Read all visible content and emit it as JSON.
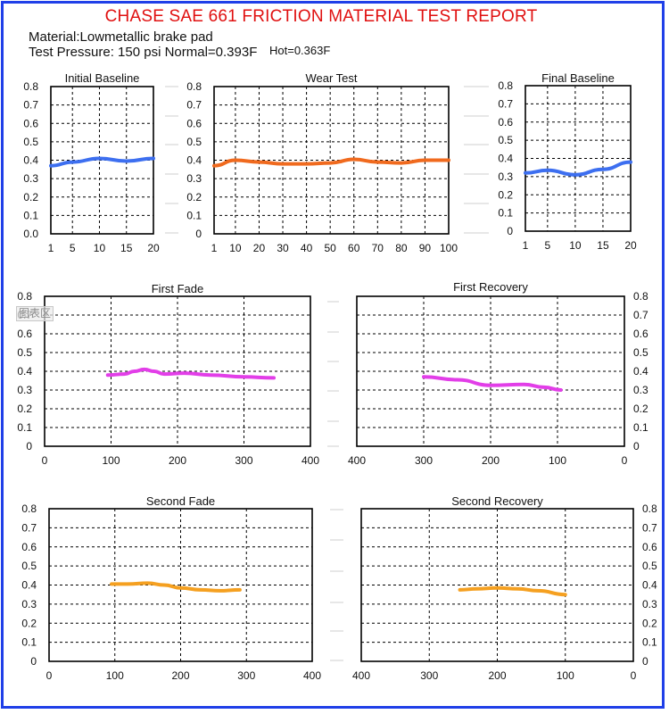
{
  "header": {
    "title": "CHASE SAE 661 FRICTION MATERIAL TEST REPORT",
    "material": "Material:Lowmetallic brake pad",
    "pressure": "Test Pressure: 150 psi Normal=0.393F",
    "hot": "Hot=0.363F"
  },
  "stamp_text": "图表区",
  "colors": {
    "baseline": "#3d6ff0",
    "wear": "#f06a1e",
    "fade1": "#e23ee8",
    "recovery1": "#e23ee8",
    "fade2": "#f5a020",
    "recovery2": "#f5a020"
  },
  "chart_data": [
    {
      "id": "initial-baseline",
      "type": "line",
      "title": "Initial Baseline",
      "x": [
        1,
        5,
        10,
        15,
        20
      ],
      "y": [
        0.37,
        0.39,
        0.41,
        0.395,
        0.41
      ],
      "xticks": [
        "1",
        "5",
        "10",
        "15",
        "20"
      ],
      "xlim": [
        1,
        20
      ],
      "ylim": [
        0,
        0.8
      ],
      "yticks": [
        "0.8",
        "0.7",
        "0.6",
        "0.5",
        "0.4",
        "0.3",
        "0.2",
        "0.1",
        "0.0"
      ],
      "yaxis": "left",
      "color": "#3d6ff0"
    },
    {
      "id": "wear-test",
      "type": "line",
      "title": "Wear Test",
      "x": [
        1,
        10,
        20,
        30,
        40,
        50,
        60,
        70,
        80,
        90,
        100
      ],
      "y": [
        0.37,
        0.4,
        0.39,
        0.38,
        0.38,
        0.385,
        0.405,
        0.39,
        0.385,
        0.4,
        0.4
      ],
      "xticks": [
        "1",
        "10",
        "20",
        "30",
        "40",
        "50",
        "60",
        "70",
        "80",
        "90",
        "100"
      ],
      "xlim": [
        1,
        100
      ],
      "ylim": [
        0,
        0.8
      ],
      "yticks": [
        "0.8",
        "0.7",
        "0.6",
        "0.5",
        "0.4",
        "0.3",
        "0.2",
        "0.1",
        "0"
      ],
      "yaxis": "left",
      "color": "#f06a1e"
    },
    {
      "id": "final-baseline",
      "type": "line",
      "title": "Final Baseline",
      "x": [
        1,
        5,
        10,
        15,
        20
      ],
      "y": [
        0.32,
        0.335,
        0.31,
        0.34,
        0.38
      ],
      "xticks": [
        "1",
        "5",
        "10",
        "15",
        "20"
      ],
      "xlim": [
        1,
        20
      ],
      "ylim": [
        0,
        0.8
      ],
      "yticks": [
        "0.8",
        "0.7",
        "0.6",
        "0.5",
        "0.4",
        "0.3",
        "0.2",
        "0.1",
        "0"
      ],
      "yaxis": "left",
      "color": "#3d6ff0"
    },
    {
      "id": "first-fade",
      "type": "line",
      "title": "First Fade",
      "x": [
        95,
        120,
        135,
        150,
        165,
        180,
        210,
        250,
        300,
        345
      ],
      "y": [
        0.38,
        0.385,
        0.4,
        0.41,
        0.4,
        0.385,
        0.39,
        0.38,
        0.37,
        0.365
      ],
      "xticks": [
        "0",
        "100",
        "200",
        "300",
        "400"
      ],
      "xlim": [
        0,
        400
      ],
      "ylim": [
        0,
        0.8
      ],
      "yticks": [
        "0.8",
        "0.7",
        "0.6",
        "0.5",
        "0.4",
        "0.3",
        "0.2",
        "0.1",
        "0"
      ],
      "yaxis": "left",
      "color": "#e23ee8"
    },
    {
      "id": "first-recovery",
      "type": "line",
      "title": "First Recovery",
      "x": [
        300,
        250,
        200,
        150,
        120,
        95
      ],
      "y": [
        0.37,
        0.355,
        0.325,
        0.33,
        0.315,
        0.3
      ],
      "xticks": [
        "400",
        "300",
        "200",
        "100",
        "0"
      ],
      "xlim": [
        400,
        0
      ],
      "ylim": [
        0,
        0.8
      ],
      "yticks": [
        "0.8",
        "0.7",
        "0.6",
        "0.5",
        "0.4",
        "0.3",
        "0.2",
        "0.1",
        "0"
      ],
      "yaxis": "right",
      "color": "#e23ee8"
    },
    {
      "id": "second-fade",
      "type": "line",
      "title": "Second Fade",
      "x": [
        95,
        120,
        150,
        175,
        200,
        230,
        260,
        290
      ],
      "y": [
        0.405,
        0.405,
        0.41,
        0.4,
        0.385,
        0.375,
        0.37,
        0.375
      ],
      "xticks": [
        "0",
        "100",
        "200",
        "300",
        "400"
      ],
      "xlim": [
        0,
        400
      ],
      "ylim": [
        0,
        0.8
      ],
      "yticks": [
        "0.8",
        "0.7",
        "0.6",
        "0.5",
        "0.4",
        "0.3",
        "0.2",
        "0.1",
        "0"
      ],
      "yaxis": "left",
      "color": "#f5a020"
    },
    {
      "id": "second-recovery",
      "type": "line",
      "title": "Second Recovery",
      "x": [
        255,
        230,
        200,
        170,
        140,
        100
      ],
      "y": [
        0.375,
        0.38,
        0.385,
        0.38,
        0.37,
        0.35
      ],
      "xticks": [
        "400",
        "300",
        "200",
        "100",
        "0"
      ],
      "xlim": [
        400,
        0
      ],
      "ylim": [
        0,
        0.8
      ],
      "yticks": [
        "0.8",
        "0.7",
        "0.6",
        "0.5",
        "0.4",
        "0.3",
        "0.2",
        "0.1",
        "0"
      ],
      "yaxis": "right",
      "color": "#f5a020"
    }
  ]
}
